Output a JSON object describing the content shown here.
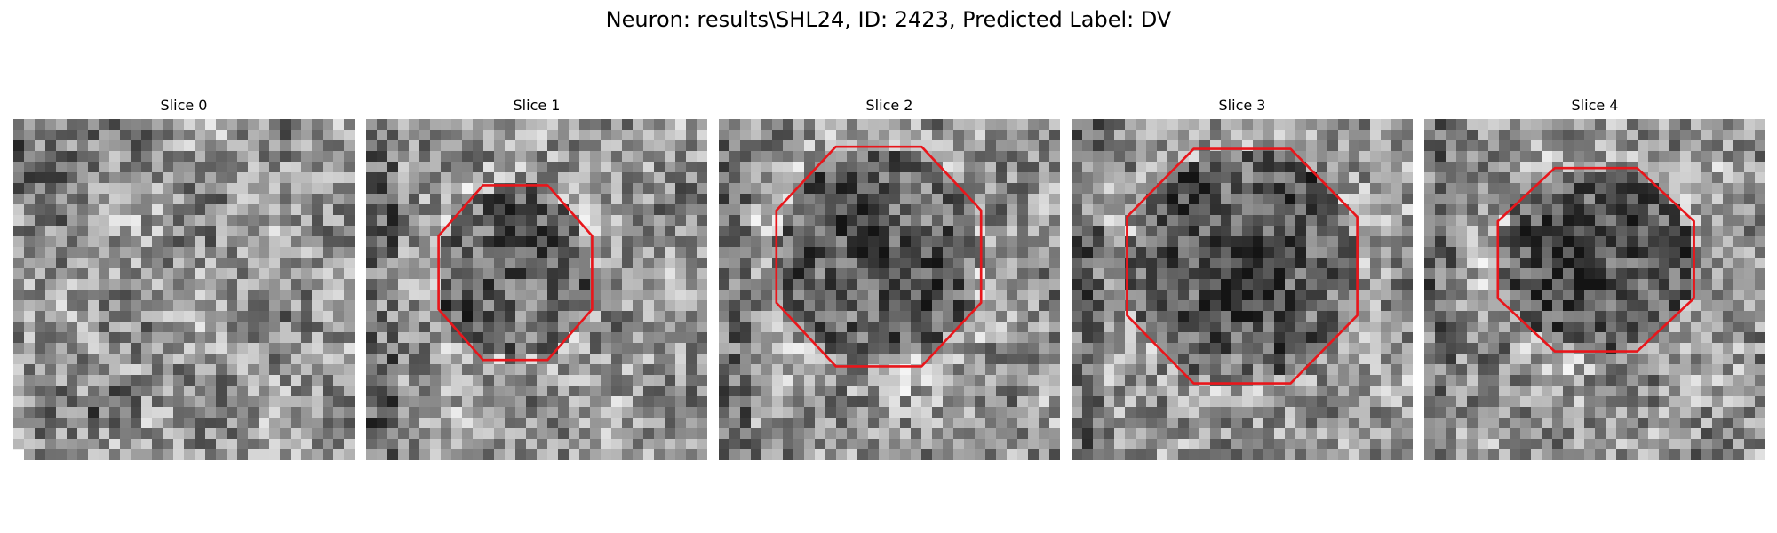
{
  "figure": {
    "title": "Neuron: results\\SHL24, ID: 2423, Predicted Label: DV"
  },
  "contour_color": "#e8161b",
  "slices": [
    {
      "title": "Slice 0",
      "has_contour": false
    },
    {
      "title": "Slice 1",
      "has_contour": true
    },
    {
      "title": "Slice 2",
      "has_contour": true
    },
    {
      "title": "Slice 3",
      "has_contour": true
    },
    {
      "title": "Slice 4",
      "has_contour": true
    }
  ]
}
